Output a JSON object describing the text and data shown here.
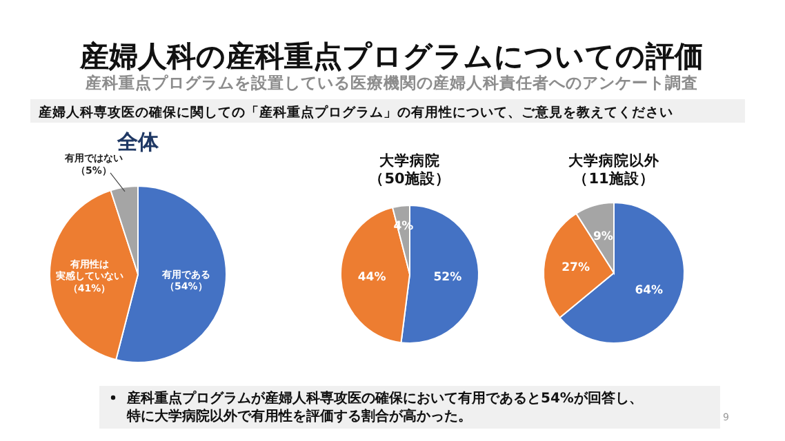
{
  "chart_data": [
    {
      "type": "other",
      "title": "産婦人科の産科重点プログラムについての評価",
      "subtitle": "産科重点プログラムを設置している医療機関の産婦人科責任者へのアンケート調査",
      "annotations": [
        "産婦人科専攻医の確保に関しての「産科重点プログラム」の有用性について、ご意見を教えてください",
        "産科重点プログラムが産婦人科専攻医の確保において有用であると54%が回答し、特に大学病院以外で有用性を評価する割合が高かった。",
        "9"
      ]
    },
    {
      "type": "pie",
      "title": "全体",
      "categories": [
        "有用である",
        "有用性は実感していない",
        "有用ではない"
      ],
      "values": [
        54,
        41,
        5
      ],
      "colors": [
        "#4472c4",
        "#ed7d31",
        "#a5a5a5"
      ],
      "value_labels": [
        "（54%）",
        "（41%）",
        "（5%）"
      ]
    },
    {
      "type": "pie",
      "title": "大学病院（50施設）",
      "categories": [
        null,
        null,
        null
      ],
      "values": [
        52,
        44,
        4
      ],
      "colors": [
        "#4472c4",
        "#ed7d31",
        "#a5a5a5"
      ],
      "value_labels": [
        "52%",
        "44%",
        "4%"
      ]
    },
    {
      "type": "pie",
      "title": "大学病院以外（11施設）",
      "categories": [
        null,
        null,
        null
      ],
      "values": [
        64,
        27,
        9
      ],
      "colors": [
        "#4472c4",
        "#ed7d31",
        "#a5a5a5"
      ],
      "value_labels": [
        "64%",
        "27%",
        "9%"
      ]
    }
  ]
}
